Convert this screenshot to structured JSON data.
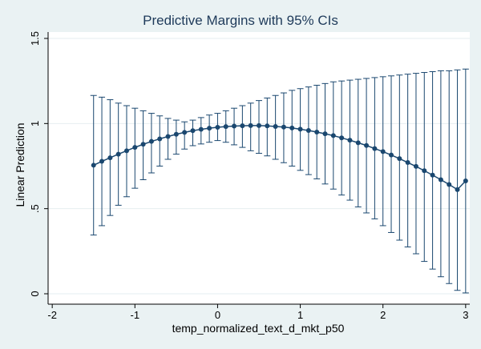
{
  "chart_data": {
    "type": "line",
    "title": "Predictive Margins with 95% CIs",
    "xlabel": "temp_normalized_text_d_mkt_p50",
    "ylabel": "Linear Prediction",
    "xlim": [
      -2.05,
      3.05
    ],
    "ylim": [
      0,
      1.5
    ],
    "x_ticks": [
      -2,
      -1,
      0,
      1,
      2,
      3
    ],
    "x_tick_labels": [
      "-2",
      "-1",
      "0",
      "1",
      "2",
      "3"
    ],
    "y_ticks": [
      0,
      0.5,
      1,
      1.5
    ],
    "y_tick_labels": [
      "0",
      ".5",
      "1",
      "1.5"
    ],
    "grid": true,
    "legend": "none",
    "colors": {
      "line": "#1a476f",
      "grid": "#e6eef0",
      "plot_bg": "#ffffff",
      "figure_bg": "#eaf2f3",
      "ci": "#1a476f"
    },
    "series": [
      {
        "x": [
          -1.5,
          -1.4,
          -1.3,
          -1.2,
          -1.1,
          -1.0,
          -0.9,
          -0.8,
          -0.7,
          -0.6,
          -0.5,
          -0.4,
          -0.3,
          -0.2,
          -0.1,
          0.0,
          0.1,
          0.2,
          0.3,
          0.4,
          0.5,
          0.6,
          0.7,
          0.8,
          0.9,
          1.0,
          1.1,
          1.2,
          1.3,
          1.4,
          1.5,
          1.6,
          1.7,
          1.8,
          1.9,
          2.0,
          2.1,
          2.2,
          2.3,
          2.4,
          2.5,
          2.6,
          2.7,
          2.8,
          2.9,
          3.0
        ],
        "y": [
          0.755,
          0.778,
          0.799,
          0.82,
          0.84,
          0.86,
          0.878,
          0.895,
          0.91,
          0.924,
          0.937,
          0.948,
          0.958,
          0.966,
          0.973,
          0.978,
          0.982,
          0.985,
          0.987,
          0.988,
          0.988,
          0.986,
          0.983,
          0.979,
          0.974,
          0.967,
          0.959,
          0.95,
          0.94,
          0.929,
          0.916,
          0.902,
          0.887,
          0.871,
          0.853,
          0.835,
          0.815,
          0.794,
          0.771,
          0.748,
          0.723,
          0.697,
          0.67,
          0.642,
          0.612,
          0.663
        ],
        "ci_low": [
          0.345,
          0.4,
          0.46,
          0.52,
          0.57,
          0.62,
          0.67,
          0.71,
          0.75,
          0.79,
          0.82,
          0.85,
          0.87,
          0.88,
          0.89,
          0.9,
          0.89,
          0.875,
          0.86,
          0.84,
          0.825,
          0.81,
          0.79,
          0.77,
          0.75,
          0.725,
          0.7,
          0.675,
          0.645,
          0.615,
          0.58,
          0.55,
          0.51,
          0.475,
          0.44,
          0.4,
          0.36,
          0.315,
          0.275,
          0.235,
          0.19,
          0.145,
          0.1,
          0.06,
          0.02,
          0.005
        ],
        "ci_high": [
          1.165,
          1.155,
          1.14,
          1.12,
          1.105,
          1.09,
          1.075,
          1.06,
          1.045,
          1.03,
          1.02,
          1.01,
          1.02,
          1.035,
          1.05,
          1.06,
          1.075,
          1.09,
          1.105,
          1.12,
          1.135,
          1.15,
          1.165,
          1.18,
          1.195,
          1.205,
          1.215,
          1.225,
          1.235,
          1.245,
          1.25,
          1.255,
          1.26,
          1.265,
          1.27,
          1.275,
          1.28,
          1.285,
          1.29,
          1.295,
          1.3,
          1.305,
          1.31,
          1.31,
          1.315,
          1.32
        ]
      }
    ]
  }
}
